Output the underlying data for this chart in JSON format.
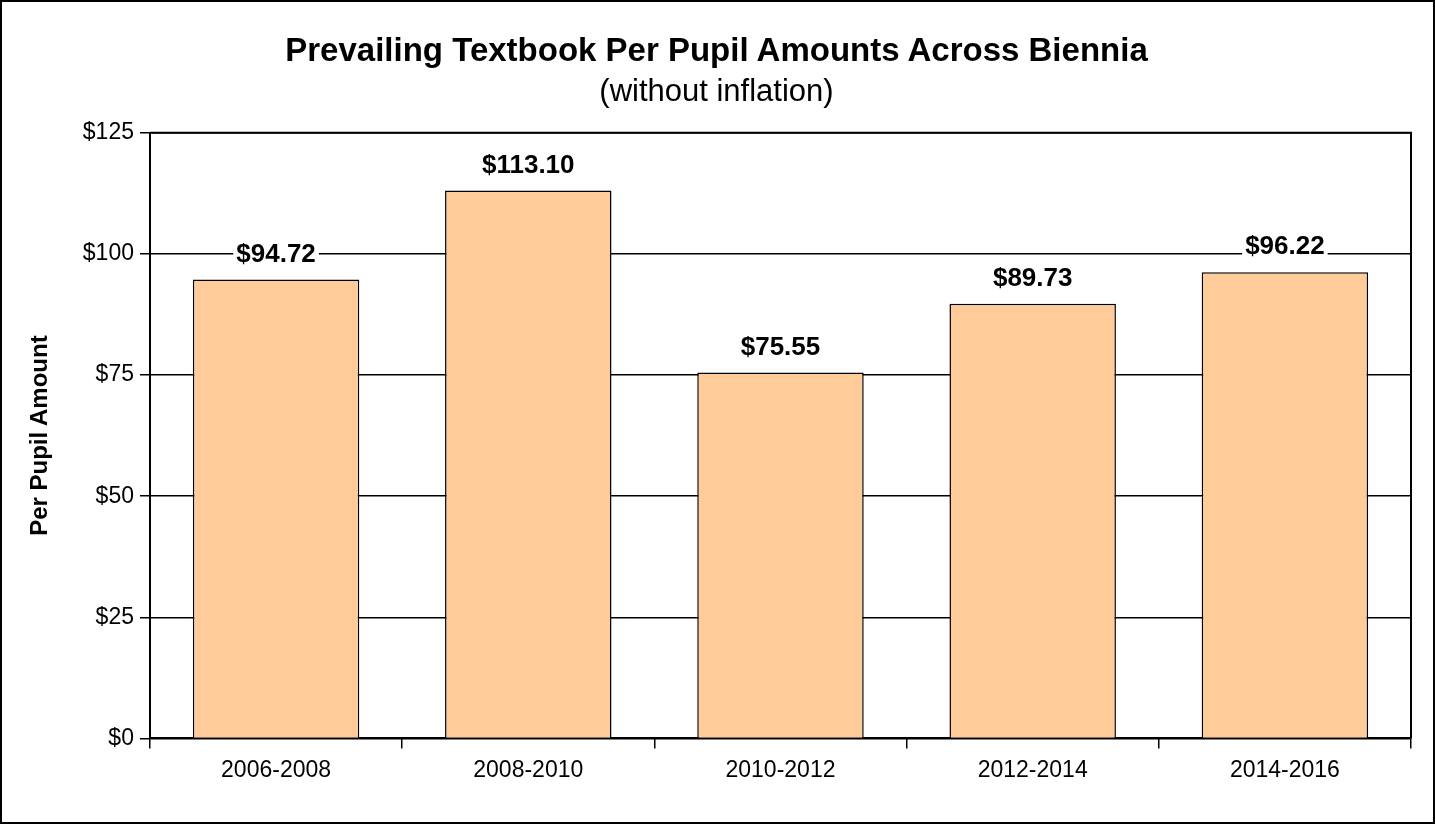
{
  "chart_data": {
    "type": "bar",
    "title": "Prevailing Textbook Per Pupil Amounts Across Biennia",
    "subtitle": "(without inflation)",
    "ylabel": "Per Pupil Amount",
    "categories": [
      "2006-2008",
      "2008-2010",
      "2010-2012",
      "2012-2014",
      "2014-2016"
    ],
    "values": [
      94.72,
      113.1,
      75.55,
      89.73,
      96.22
    ],
    "value_labels": [
      "$94.72",
      "$113.10",
      "$75.55",
      "$89.73",
      "$96.22"
    ],
    "color": "#ffcc99",
    "ylim": [
      0,
      125
    ],
    "yticks": [
      {
        "value": 0,
        "label": "$0"
      },
      {
        "value": 25,
        "label": "$25"
      },
      {
        "value": 50,
        "label": "$50"
      },
      {
        "value": 75,
        "label": "$75"
      },
      {
        "value": 100,
        "label": "$100"
      },
      {
        "value": 125,
        "label": "$125"
      }
    ],
    "grid": "y",
    "legend": false
  }
}
